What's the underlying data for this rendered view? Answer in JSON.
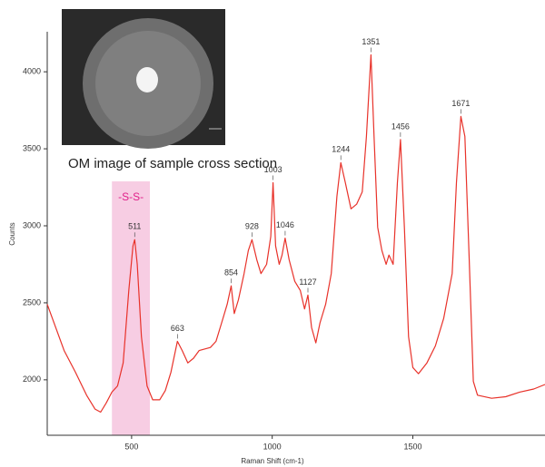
{
  "chart_data": {
    "type": "line",
    "x_label": "Raman Shift (cm-1)",
    "y_label": "Counts",
    "xlim": [
      200,
      1970
    ],
    "ylim": [
      1640,
      4260
    ],
    "xticks": [
      500,
      1000,
      1500
    ],
    "yticks": [
      2000,
      2500,
      3000,
      3500,
      4000
    ],
    "grid": false,
    "series": [
      {
        "color": "#e8322a",
        "x": [
          200,
          230,
          260,
          300,
          340,
          370,
          390,
          410,
          430,
          450,
          470,
          490,
          505,
          511,
          520,
          535,
          555,
          575,
          600,
          620,
          640,
          663,
          680,
          700,
          720,
          740,
          780,
          800,
          820,
          840,
          854,
          865,
          880,
          900,
          915,
          928,
          945,
          960,
          980,
          995,
          1003,
          1012,
          1025,
          1035,
          1046,
          1060,
          1080,
          1100,
          1115,
          1127,
          1140,
          1155,
          1170,
          1190,
          1210,
          1230,
          1244,
          1260,
          1280,
          1300,
          1320,
          1335,
          1351,
          1362,
          1375,
          1390,
          1405,
          1415,
          1430,
          1445,
          1456,
          1470,
          1485,
          1500,
          1520,
          1550,
          1580,
          1610,
          1640,
          1655,
          1671,
          1685,
          1700,
          1715,
          1730,
          1780,
          1830,
          1880,
          1930,
          1970
        ],
        "values": [
          2490,
          2340,
          2190,
          2050,
          1900,
          1810,
          1790,
          1850,
          1920,
          1960,
          2110,
          2580,
          2870,
          2910,
          2750,
          2280,
          1960,
          1870,
          1870,
          1930,
          2050,
          2250,
          2190,
          2110,
          2140,
          2190,
          2210,
          2250,
          2370,
          2490,
          2610,
          2430,
          2520,
          2690,
          2840,
          2910,
          2780,
          2690,
          2750,
          2930,
          3280,
          2870,
          2750,
          2810,
          2920,
          2780,
          2640,
          2580,
          2460,
          2550,
          2340,
          2240,
          2370,
          2490,
          2690,
          3190,
          3410,
          3280,
          3110,
          3140,
          3220,
          3580,
          4110,
          3580,
          2990,
          2840,
          2750,
          2810,
          2750,
          3280,
          3560,
          2990,
          2280,
          2080,
          2040,
          2110,
          2220,
          2400,
          2690,
          3280,
          3710,
          3580,
          2810,
          1990,
          1900,
          1880,
          1890,
          1920,
          1940,
          1970
        ]
      }
    ],
    "peak_labels": [
      511,
      663,
      854,
      928,
      1003,
      1046,
      1127,
      1244,
      1351,
      1456,
      1671
    ],
    "highlight": {
      "label": "-S-S-",
      "range": [
        430,
        565
      ],
      "color": "#f7cde3",
      "label_color": "#e0208a"
    },
    "inset_caption": "OM image of sample cross section"
  }
}
